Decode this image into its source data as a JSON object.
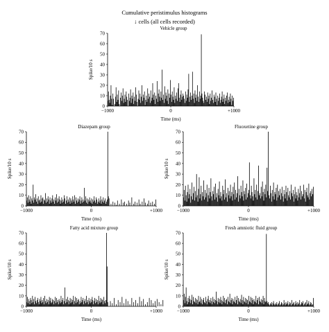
{
  "figure": {
    "title": "Cumulative peristimulus histograms",
    "subtitle": "cells (all cells recorded)",
    "subtitle_icon": "down-arrow-icon"
  },
  "chart_data": [
    {
      "type": "bar",
      "title": "Vehicle group",
      "xlabel": "Time (ms)",
      "ylabel": "Spike/10 s",
      "xlim": [
        -1000,
        1000
      ],
      "ylim": [
        0,
        70
      ],
      "yticks": [
        "0",
        "10",
        "20",
        "30",
        "40",
        "50",
        "60",
        "70"
      ],
      "xticks": [
        "−1000",
        "0",
        "+1000"
      ],
      "bin_ms": 10,
      "x_start": -1000,
      "values": [
        5,
        14,
        6,
        3,
        10,
        20,
        7,
        1,
        12,
        7,
        0,
        2,
        9,
        18,
        4,
        11,
        6,
        15,
        2,
        0,
        8,
        13,
        5,
        10,
        17,
        3,
        7,
        11,
        4,
        14,
        9,
        6,
        0,
        12,
        5,
        8,
        16,
        3,
        10,
        7,
        13,
        2,
        9,
        5,
        18,
        11,
        4,
        0,
        7,
        15,
        6,
        12,
        3,
        9,
        20,
        5,
        11,
        8,
        14,
        1,
        6,
        10,
        4,
        17,
        7,
        12,
        9,
        3,
        15,
        5,
        8,
        22,
        11,
        6,
        13,
        2,
        10,
        7,
        24,
        4,
        12,
        16,
        9,
        5,
        14,
        8,
        35,
        6,
        11,
        3,
        19,
        7,
        13,
        10,
        5,
        16,
        2,
        12,
        8,
        25,
        11,
        4,
        14,
        9,
        6,
        18,
        3,
        10,
        7,
        13,
        5,
        17,
        22,
        8,
        4,
        11,
        15,
        6,
        9,
        12,
        10,
        7,
        3,
        14,
        5,
        11,
        8,
        16,
        31,
        4,
        9,
        13,
        6,
        10,
        33,
        7,
        12,
        3,
        15,
        8,
        11,
        5,
        20,
        9,
        4,
        14,
        7,
        10,
        69,
        12,
        8,
        5,
        3,
        14,
        11,
        6,
        9,
        4,
        13,
        7,
        10,
        2,
        12,
        5,
        8,
        15,
        6,
        3,
        11,
        9,
        4,
        13,
        7,
        1,
        10,
        5,
        8,
        12,
        3,
        6,
        9,
        14,
        4,
        7,
        11,
        2,
        8,
        5,
        10,
        13,
        3,
        6,
        9,
        4,
        12,
        7,
        1,
        10,
        5,
        8
      ]
    },
    {
      "type": "bar",
      "title": "Diazepam group",
      "xlabel": "Time (ms)",
      "ylabel": "Spike/10 s",
      "xlim": [
        -1000,
        1000
      ],
      "ylim": [
        0,
        70
      ],
      "yticks": [
        "0",
        "10",
        "20",
        "30",
        "40",
        "50",
        "60",
        "70"
      ],
      "xticks": [
        "−1000",
        "0",
        "+1000"
      ],
      "bin_ms": 10,
      "x_start": -1000,
      "values": [
        5,
        8,
        3,
        10,
        6,
        4,
        9,
        2,
        7,
        5,
        20,
        3,
        8,
        6,
        11,
        4,
        7,
        2,
        9,
        5,
        6,
        3,
        10,
        4,
        7,
        8,
        2,
        6,
        5,
        12,
        3,
        7,
        4,
        9,
        6,
        2,
        8,
        5,
        3,
        7,
        10,
        4,
        6,
        2,
        8,
        5,
        11,
        3,
        7,
        4,
        9,
        6,
        2,
        5,
        8,
        3,
        6,
        4,
        10,
        7,
        2,
        5,
        9,
        3,
        6,
        4,
        8,
        2,
        7,
        5,
        3,
        9,
        6,
        4,
        10,
        2,
        8,
        5,
        3,
        7,
        4,
        6,
        9,
        2,
        5,
        8,
        3,
        6,
        4,
        17,
        5,
        9,
        3,
        7,
        2,
        6,
        4,
        8,
        5,
        3,
        7,
        2,
        6,
        4,
        9,
        5,
        3,
        8,
        6,
        2,
        4,
        7,
        3,
        5,
        9,
        2,
        6,
        4,
        8,
        3,
        5,
        7,
        2,
        4,
        6,
        70,
        9,
        7,
        0,
        0,
        2,
        0,
        0,
        4,
        0,
        0,
        3,
        0,
        1,
        0,
        5,
        0,
        0,
        2,
        0,
        0,
        6,
        0,
        0,
        3,
        0,
        4,
        0,
        0,
        2,
        0,
        0,
        5,
        0,
        3,
        0,
        0,
        8,
        0,
        0,
        2,
        0,
        4,
        0,
        0,
        3,
        0,
        0,
        6,
        0,
        2,
        0,
        0,
        4,
        0,
        0,
        7,
        0,
        3,
        0,
        0,
        2,
        0,
        5,
        0,
        0,
        3,
        0,
        0,
        4,
        0,
        0,
        2,
        0,
        6,
        0
      ]
    },
    {
      "type": "bar",
      "title": "Fluoxetine group",
      "xlabel": "Time (ms)",
      "ylabel": "Spike/10 s",
      "xlim": [
        -1000,
        1000
      ],
      "ylim": [
        0,
        70
      ],
      "yticks": [
        "0",
        "10",
        "20",
        "30",
        "40",
        "50",
        "60",
        "70"
      ],
      "xticks": [
        "−1000",
        "0",
        "+1000"
      ],
      "bin_ms": 10,
      "x_start": -1000,
      "values": [
        8,
        15,
        5,
        19,
        10,
        4,
        13,
        20,
        7,
        11,
        16,
        3,
        9,
        22,
        6,
        12,
        18,
        5,
        14,
        8,
        30,
        10,
        4,
        16,
        27,
        7,
        11,
        19,
        5,
        13,
        9,
        24,
        6,
        15,
        8,
        12,
        20,
        4,
        10,
        17,
        7,
        13,
        26,
        9,
        5,
        14,
        11,
        18,
        6,
        21,
        8,
        12,
        4,
        16,
        10,
        23,
        7,
        13,
        9,
        5,
        19,
        11,
        15,
        6,
        25,
        8,
        12,
        4,
        17,
        10,
        14,
        7,
        20,
        9,
        13,
        5,
        18,
        11,
        22,
        6,
        15,
        8,
        12,
        28,
        4,
        16,
        10,
        7,
        19,
        13,
        9,
        24,
        5,
        14,
        11,
        17,
        6,
        21,
        8,
        12,
        15,
        41,
        10,
        7,
        19,
        13,
        9,
        5,
        26,
        11,
        15,
        8,
        20,
        6,
        14,
        38,
        10,
        12,
        7,
        18,
        9,
        23,
        13,
        5,
        16,
        11,
        20,
        8,
        36,
        14,
        70,
        10,
        7,
        19,
        12,
        4,
        15,
        9,
        22,
        6,
        13,
        11,
        17,
        5,
        20,
        8,
        14,
        10,
        16,
        6,
        12,
        18,
        9,
        4,
        15,
        11,
        7,
        19,
        13,
        5,
        17,
        10,
        8,
        14,
        6,
        20,
        12,
        9,
        15,
        4,
        11,
        18,
        7,
        13,
        10,
        5,
        16,
        8,
        12,
        19,
        6,
        14,
        9,
        11,
        20,
        7,
        15,
        4,
        13,
        17,
        10,
        8,
        21,
        6,
        12,
        14,
        9,
        16,
        11,
        18
      ]
    },
    {
      "type": "bar",
      "title": "Fatty acid mixture group",
      "xlabel": "Time (ms)",
      "ylabel": "Spike/10 s",
      "xlim": [
        -1000,
        1000
      ],
      "ylim": [
        0,
        70
      ],
      "yticks": [
        "0",
        "10",
        "20",
        "30",
        "40",
        "50",
        "60",
        "70"
      ],
      "xticks": [
        "−1000",
        "0",
        "+1000"
      ],
      "bin_ms": 10,
      "x_start": -1000,
      "values": [
        4,
        9,
        3,
        7,
        5,
        2,
        8,
        6,
        3,
        10,
        4,
        7,
        2,
        9,
        5,
        3,
        6,
        8,
        4,
        2,
        7,
        5,
        9,
        3,
        6,
        4,
        8,
        2,
        10,
        5,
        3,
        7,
        4,
        6,
        2,
        9,
        5,
        8,
        3,
        4,
        7,
        6,
        2,
        5,
        9,
        3,
        8,
        4,
        6,
        2,
        7,
        5,
        3,
        10,
        4,
        6,
        8,
        2,
        5,
        18,
        3,
        7,
        4,
        9,
        6,
        2,
        5,
        8,
        3,
        7,
        4,
        6,
        10,
        2,
        5,
        9,
        3,
        8,
        4,
        6,
        7,
        2,
        5,
        3,
        9,
        4,
        6,
        8,
        2,
        5,
        7,
        3,
        10,
        4,
        6,
        2,
        8,
        5,
        3,
        7,
        4,
        9,
        6,
        2,
        5,
        8,
        3,
        7,
        4,
        6,
        2,
        10,
        5,
        3,
        8,
        4,
        7,
        6,
        2,
        9,
        5,
        3,
        6,
        70,
        38,
        4,
        0,
        0,
        0,
        5,
        0,
        0,
        3,
        0,
        0,
        8,
        0,
        0,
        2,
        0,
        0,
        6,
        0,
        0,
        4,
        0,
        0,
        9,
        0,
        0,
        3,
        0,
        0,
        7,
        0,
        0,
        5,
        0,
        0,
        2,
        0,
        0,
        8,
        0,
        0,
        4,
        0,
        0,
        6,
        0,
        0,
        3,
        0,
        0,
        9,
        0,
        0,
        5,
        0,
        0,
        7,
        0,
        0,
        2,
        0,
        0,
        4,
        0,
        0,
        8,
        0,
        0,
        6,
        0,
        0,
        3,
        0,
        0,
        5,
        0,
        0,
        7,
        0,
        0,
        4,
        0,
        0,
        2,
        0,
        0,
        6,
        0
      ]
    },
    {
      "type": "bar",
      "title": "Fresh amniotic fluid group",
      "xlabel": "Time (ms)",
      "ylabel": "Spike/10 s",
      "xlim": [
        -1000,
        1000
      ],
      "ylim": [
        0,
        70
      ],
      "yticks": [
        "0",
        "10",
        "20",
        "30",
        "40",
        "50",
        "60",
        "70"
      ],
      "xticks": [
        "−1000",
        "0",
        "+1000"
      ],
      "bin_ms": 10,
      "x_start": -1000,
      "values": [
        6,
        12,
        3,
        9,
        18,
        5,
        2,
        8,
        4,
        10,
        7,
        3,
        6,
        11,
        2,
        9,
        5,
        4,
        8,
        3,
        7,
        6,
        2,
        10,
        4,
        5,
        9,
        3,
        7,
        2,
        6,
        8,
        4,
        3,
        9,
        5,
        2,
        7,
        10,
        4,
        6,
        3,
        8,
        5,
        2,
        9,
        4,
        7,
        3,
        6,
        14,
        5,
        2,
        8,
        4,
        7,
        3,
        9,
        6,
        2,
        5,
        10,
        4,
        8,
        3,
        6,
        7,
        2,
        9,
        5,
        4,
        12,
        3,
        6,
        8,
        2,
        7,
        5,
        4,
        9,
        3,
        6,
        10,
        2,
        8,
        5,
        4,
        7,
        3,
        11,
        6,
        2,
        9,
        5,
        4,
        8,
        3,
        7,
        6,
        2,
        10,
        5,
        4,
        9,
        3,
        8,
        6,
        2,
        7,
        5,
        4,
        10,
        3,
        6,
        8,
        2,
        9,
        5,
        4,
        7,
        3,
        6,
        10,
        2,
        8,
        5,
        4,
        69,
        5,
        3,
        4,
        2,
        1,
        3,
        2,
        4,
        1,
        3,
        5,
        2,
        1,
        3,
        2,
        4,
        1,
        2,
        3,
        5,
        1,
        2,
        4,
        3,
        1,
        2,
        6,
        3,
        1,
        4,
        2,
        3,
        5,
        1,
        2,
        4,
        3,
        1,
        6,
        2,
        3,
        4,
        1,
        2,
        5,
        3,
        1,
        4,
        2,
        3,
        6,
        1,
        2,
        4,
        3,
        5,
        1,
        2,
        3,
        4,
        1,
        6,
        2,
        3,
        5,
        1,
        2,
        4,
        3,
        1,
        2,
        8
      ]
    }
  ]
}
